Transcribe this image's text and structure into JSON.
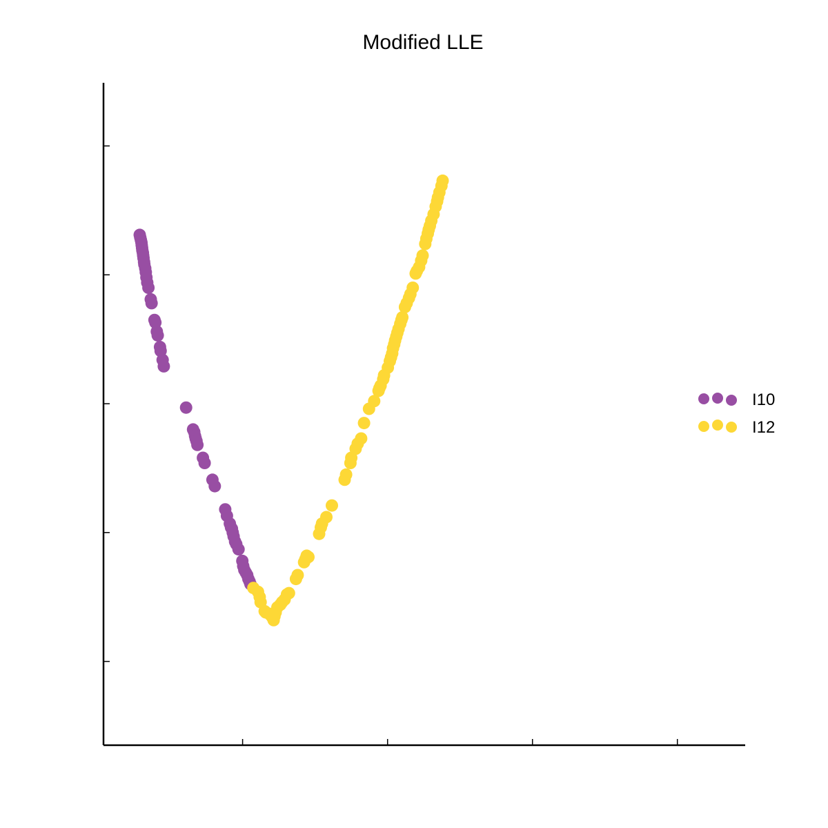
{
  "chart_data": {
    "type": "scatter",
    "title": "Modified LLE",
    "xlabel": "",
    "ylabel": "",
    "xlim": [
      -0.098,
      0.1234
    ],
    "ylim": [
      -0.0065,
      0.0449
    ],
    "xticks": [
      -0.05,
      0.0,
      0.05,
      0.1
    ],
    "yticks": [
      0.0,
      0.01,
      0.02,
      0.03,
      0.04
    ],
    "tick_labels_shown": false,
    "grid": false,
    "legend": "right-center",
    "series": [
      {
        "name": "I10",
        "color": "#984EA3",
        "points": [
          [
            -0.0855,
            0.0331
          ],
          [
            -0.0853,
            0.0329
          ],
          [
            -0.0851,
            0.0327
          ],
          [
            -0.0849,
            0.0325
          ],
          [
            -0.0848,
            0.0323
          ],
          [
            -0.0847,
            0.0321
          ],
          [
            -0.0846,
            0.0319
          ],
          [
            -0.0844,
            0.0317
          ],
          [
            -0.0843,
            0.0315
          ],
          [
            -0.0842,
            0.0313
          ],
          [
            -0.084,
            0.031
          ],
          [
            -0.0839,
            0.0308
          ],
          [
            -0.0836,
            0.0305
          ],
          [
            -0.0834,
            0.0302
          ],
          [
            -0.0832,
            0.0298
          ],
          [
            -0.0829,
            0.0294
          ],
          [
            -0.0825,
            0.029
          ],
          [
            -0.0817,
            0.0281
          ],
          [
            -0.0814,
            0.0278
          ],
          [
            -0.0804,
            0.0265
          ],
          [
            -0.0801,
            0.0263
          ],
          [
            -0.0796,
            0.0256
          ],
          [
            -0.0793,
            0.0253
          ],
          [
            -0.0785,
            0.0244
          ],
          [
            -0.0783,
            0.0241
          ],
          [
            -0.0776,
            0.0234
          ],
          [
            -0.0772,
            0.0229
          ],
          [
            -0.0695,
            0.0197
          ],
          [
            -0.0671,
            0.018
          ],
          [
            -0.0667,
            0.0178
          ],
          [
            -0.0664,
            0.0175
          ],
          [
            -0.0662,
            0.0173
          ],
          [
            -0.0659,
            0.0171
          ],
          [
            -0.0656,
            0.0168
          ],
          [
            -0.0637,
            0.0158
          ],
          [
            -0.0631,
            0.0154
          ],
          [
            -0.0604,
            0.0141
          ],
          [
            -0.0596,
            0.0136
          ],
          [
            -0.056,
            0.0118
          ],
          [
            -0.0554,
            0.0113
          ],
          [
            -0.0544,
            0.0107
          ],
          [
            -0.054,
            0.0104
          ],
          [
            -0.0537,
            0.0103
          ],
          [
            -0.0534,
            0.01
          ],
          [
            -0.0531,
            0.0097
          ],
          [
            -0.0526,
            0.0093
          ],
          [
            -0.0522,
            0.0091
          ],
          [
            -0.0514,
            0.0087
          ],
          [
            -0.0501,
            0.0078
          ],
          [
            -0.0498,
            0.0074
          ],
          [
            -0.0494,
            0.0071
          ],
          [
            -0.0489,
            0.0069
          ],
          [
            -0.0484,
            0.0067
          ],
          [
            -0.048,
            0.0064
          ],
          [
            -0.0476,
            0.0062
          ],
          [
            -0.0473,
            0.006
          ]
        ]
      },
      {
        "name": "I12",
        "color": "#FDD836",
        "points": [
          [
            -0.0463,
            0.0057
          ],
          [
            -0.0447,
            0.0054
          ],
          [
            -0.0441,
            0.005
          ],
          [
            -0.0438,
            0.0046
          ],
          [
            -0.0424,
            0.0039
          ],
          [
            -0.042,
            0.0038
          ],
          [
            -0.0408,
            0.0037
          ],
          [
            -0.0404,
            0.0036
          ],
          [
            -0.0397,
            0.0034
          ],
          [
            -0.0393,
            0.0032
          ],
          [
            -0.039,
            0.0035
          ],
          [
            -0.0386,
            0.0038
          ],
          [
            -0.038,
            0.0042
          ],
          [
            -0.037,
            0.0044
          ],
          [
            -0.0364,
            0.0046
          ],
          [
            -0.0355,
            0.0048
          ],
          [
            -0.0347,
            0.0052
          ],
          [
            -0.034,
            0.0053
          ],
          [
            -0.0316,
            0.0064
          ],
          [
            -0.031,
            0.0067
          ],
          [
            -0.0288,
            0.0077
          ],
          [
            -0.0284,
            0.0079
          ],
          [
            -0.0282,
            0.008
          ],
          [
            -0.0279,
            0.0082
          ],
          [
            -0.0273,
            0.0081
          ],
          [
            -0.0236,
            0.0099
          ],
          [
            -0.023,
            0.0104
          ],
          [
            -0.0226,
            0.0107
          ],
          [
            -0.0211,
            0.0112
          ],
          [
            -0.0192,
            0.0121
          ],
          [
            -0.0148,
            0.0141
          ],
          [
            -0.0143,
            0.0145
          ],
          [
            -0.0128,
            0.0154
          ],
          [
            -0.0125,
            0.0158
          ],
          [
            -0.011,
            0.0165
          ],
          [
            -0.0103,
            0.0169
          ],
          [
            -0.0091,
            0.0173
          ],
          [
            -0.0081,
            0.0185
          ],
          [
            -0.0064,
            0.0196
          ],
          [
            -0.0046,
            0.0202
          ],
          [
            -0.0031,
            0.021
          ],
          [
            -0.0028,
            0.0212
          ],
          [
            -0.0024,
            0.0214
          ],
          [
            -0.0015,
            0.0219
          ],
          [
            -0.0012,
            0.0222
          ],
          [
            0.0001,
            0.0228
          ],
          [
            0.0008,
            0.0233
          ],
          [
            0.0012,
            0.0236
          ],
          [
            0.0016,
            0.0239
          ],
          [
            0.0019,
            0.0243
          ],
          [
            0.0023,
            0.0246
          ],
          [
            0.0026,
            0.0249
          ],
          [
            0.003,
            0.0252
          ],
          [
            0.0034,
            0.0255
          ],
          [
            0.0038,
            0.0258
          ],
          [
            0.0044,
            0.0262
          ],
          [
            0.0048,
            0.0265
          ],
          [
            0.0051,
            0.0267
          ],
          [
            0.006,
            0.0275
          ],
          [
            0.0066,
            0.0278
          ],
          [
            0.0074,
            0.0282
          ],
          [
            0.0079,
            0.0285
          ],
          [
            0.0087,
            0.029
          ],
          [
            0.0097,
            0.0301
          ],
          [
            0.0101,
            0.0303
          ],
          [
            0.0109,
            0.0306
          ],
          [
            0.0116,
            0.0311
          ],
          [
            0.0121,
            0.0315
          ],
          [
            0.013,
            0.0324
          ],
          [
            0.0134,
            0.0328
          ],
          [
            0.0139,
            0.0332
          ],
          [
            0.0142,
            0.0335
          ],
          [
            0.0146,
            0.0338
          ],
          [
            0.0151,
            0.0342
          ],
          [
            0.0159,
            0.0347
          ],
          [
            0.0166,
            0.0353
          ],
          [
            0.0171,
            0.0357
          ],
          [
            0.0174,
            0.036
          ],
          [
            0.0179,
            0.0364
          ],
          [
            0.0186,
            0.0369
          ],
          [
            0.019,
            0.0373
          ]
        ]
      }
    ]
  }
}
